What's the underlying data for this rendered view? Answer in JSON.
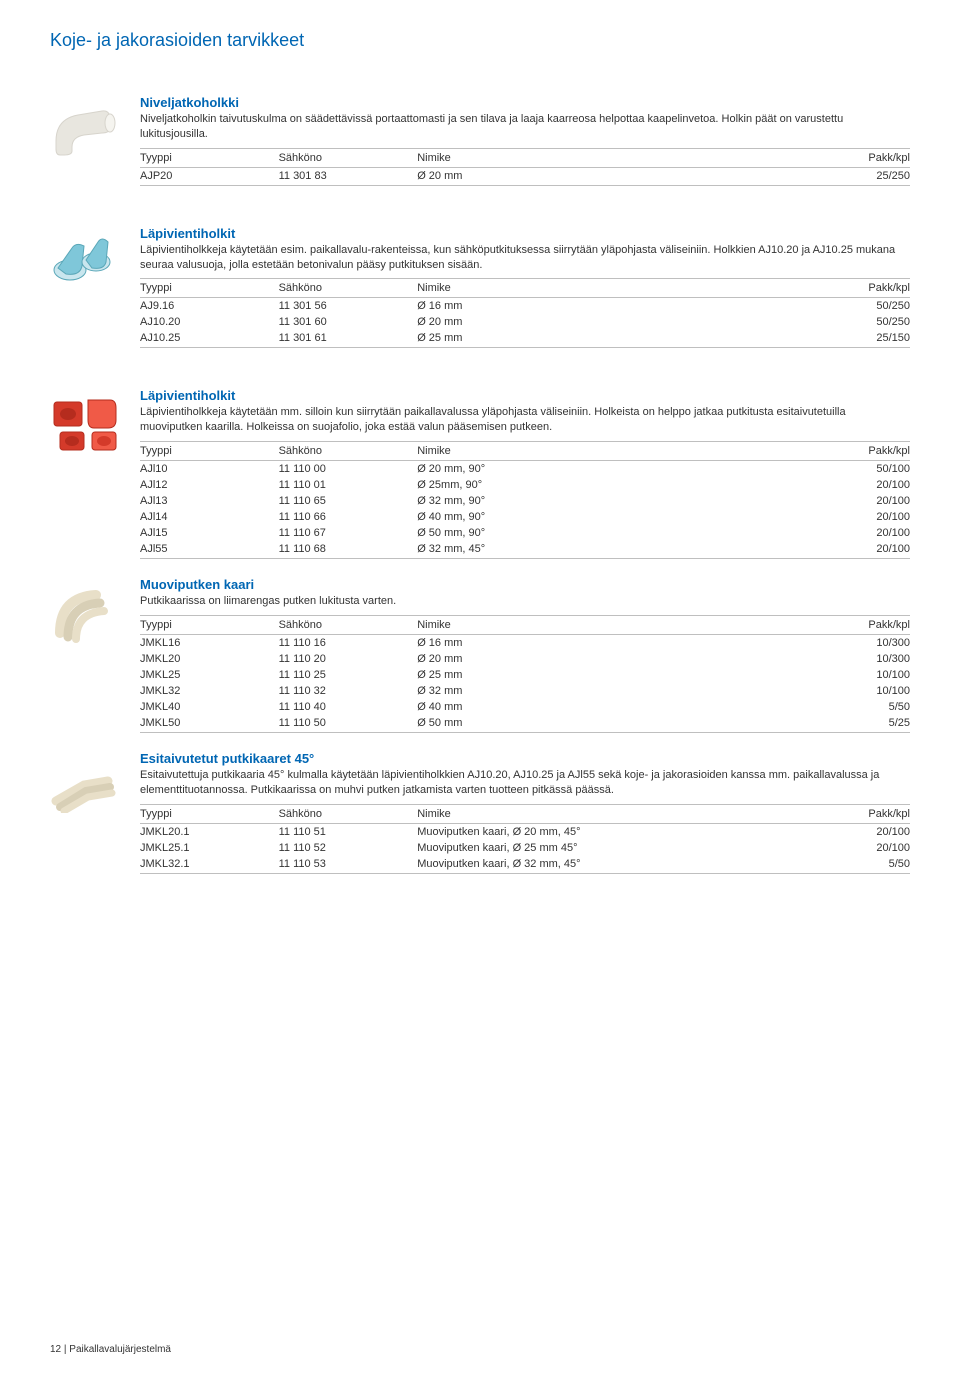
{
  "page_title": "Koje- ja jakorasioiden tarvikkeet",
  "headers": {
    "type": "Tyyppi",
    "num": "Sähköno",
    "name": "Nimike",
    "pack": "Pakk/kpl"
  },
  "footer": "12  | Paikallavalujärjestelmä",
  "sections": [
    {
      "title": "Niveljatkoholkki",
      "desc": "Niveljatkoholkin taivutuskulma on säädettävissä portaattomasti ja sen tilava ja laaja kaarreosa helpottaa kaapelinvetoa. Holkin päät on varustettu lukitusjousilla.",
      "rows": [
        {
          "type": "AJP20",
          "num": "11 301 83",
          "name": "Ø 20 mm",
          "pack": "25/250"
        }
      ],
      "gap_after": true
    },
    {
      "title": "Läpivientiholkit",
      "desc": "Läpivientiholkkeja käytetään esim. paikallavalu-rakenteissa, kun sähköputkituksessa siirrytään yläpohjasta väliseiniin. Holkkien AJ10.20 ja AJ10.25 mukana seuraa valusuoja, jolla estetään betonivalun pääsy putkituksen sisään.",
      "rows": [
        {
          "type": "AJ9.16",
          "num": "11 301 56",
          "name": "Ø 16 mm",
          "pack": "50/250"
        },
        {
          "type": "AJ10.20",
          "num": "11 301 60",
          "name": "Ø 20 mm",
          "pack": "50/250"
        },
        {
          "type": "AJ10.25",
          "num": "11 301 61",
          "name": "Ø 25 mm",
          "pack": "25/150"
        }
      ],
      "gap_after": true
    },
    {
      "title": "Läpivientiholkit",
      "desc": "Läpivientiholkkeja käytetään mm. silloin kun siirrytään paikallavalussa yläpohjasta väliseiniin.\nHolkeista on helppo jatkaa putkitusta esitaivutetuilla muoviputken kaarilla. Holkeissa on suojafolio, joka estää valun pääsemisen putkeen.",
      "rows": [
        {
          "type": "AJl10",
          "num": "11 110 00",
          "name": "Ø 20 mm, 90°",
          "pack": "50/100"
        },
        {
          "type": "AJl12",
          "num": "11 110 01",
          "name": "Ø 25mm, 90°",
          "pack": "20/100"
        },
        {
          "type": "AJl13",
          "num": "11 110 65",
          "name": "Ø 32 mm, 90°",
          "pack": "20/100"
        },
        {
          "type": "AJl14",
          "num": "11 110 66",
          "name": "Ø 40 mm, 90°",
          "pack": "20/100"
        },
        {
          "type": "AJl15",
          "num": "11 110 67",
          "name": "Ø 50 mm, 90°",
          "pack": "20/100"
        },
        {
          "type": "AJl55",
          "num": "11 110 68",
          "name": "Ø 32 mm, 45°",
          "pack": "20/100"
        }
      ]
    },
    {
      "title": "Muoviputken kaari",
      "desc": "Putkikaarissa on liimarengas putken lukitusta varten.",
      "rows": [
        {
          "type": "JMKL16",
          "num": "11 110 16",
          "name": "Ø 16 mm",
          "pack": "10/300"
        },
        {
          "type": "JMKL20",
          "num": "11 110 20",
          "name": "Ø 20 mm",
          "pack": "10/300"
        },
        {
          "type": "JMKL25",
          "num": "11 110 25",
          "name": "Ø 25 mm",
          "pack": "10/100"
        },
        {
          "type": "JMKL32",
          "num": "11 110 32",
          "name": "Ø 32 mm",
          "pack": "10/100"
        },
        {
          "type": "JMKL40",
          "num": "11 110 40",
          "name": "Ø 40 mm",
          "pack": "5/50"
        },
        {
          "type": "JMKL50",
          "num": "11 110 50",
          "name": "Ø 50 mm",
          "pack": "5/25"
        }
      ]
    },
    {
      "title": "Esitaivutetut putkikaaret 45°",
      "desc": "Esitaivutettuja putkikaaria 45° kulmalla käytetään läpivientiholkkien AJ10.20, AJ10.25 ja AJl55 sekä koje- ja jakorasioiden kanssa mm. paikallavalussa ja elementtituotannossa. Putkikaarissa on muhvi putken jatkamista varten tuotteen pitkässä päässä.",
      "rows": [
        {
          "type": "JMKL20.1",
          "num": "11 110 51",
          "name": "Muoviputken kaari, Ø 20 mm, 45°",
          "pack": "20/100"
        },
        {
          "type": "JMKL25.1",
          "num": "11 110 52",
          "name": "Muoviputken kaari, Ø 25 mm 45°",
          "pack": "20/100"
        },
        {
          "type": "JMKL32.1",
          "num": "11 110 53",
          "name": "Muoviputken kaari, Ø 32 mm, 45°",
          "pack": "5/50"
        }
      ]
    }
  ],
  "thumbs": [
    {
      "kind": "elbow",
      "colors": [
        "#e8e6df",
        "#d7d4cc"
      ]
    },
    {
      "kind": "sleeve",
      "colors": [
        "#7fc7d9",
        "#c9e6ee",
        "#5aa7b8"
      ]
    },
    {
      "kind": "red",
      "colors": [
        "#d43a2a",
        "#b52c1e",
        "#f05a47"
      ]
    },
    {
      "kind": "bend",
      "colors": [
        "#e8dfc8",
        "#d8cfb6"
      ]
    },
    {
      "kind": "bend45",
      "colors": [
        "#e8dfc8",
        "#d8cfb6"
      ]
    }
  ]
}
